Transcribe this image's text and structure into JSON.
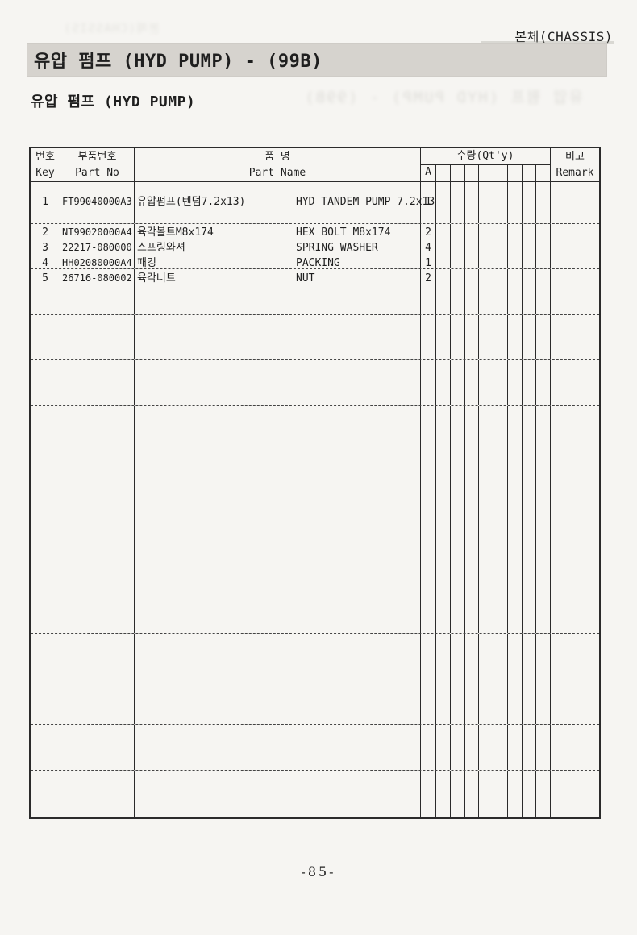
{
  "page": {
    "corner_label": "본체(CHASSIS)",
    "title_bar": "유압 펌프 (HYD PUMP) - (99B)",
    "subtitle": "유압 펌프 (HYD PUMP)",
    "page_number": "-85-"
  },
  "bleedthrough": {
    "right_text": "유압 펌프 (HYD PUMP) - (99B)",
    "top_text": "본체(CHASSIS)"
  },
  "table": {
    "header": {
      "key_ko": "번호",
      "key_en": "Key",
      "part_no_ko": "부품번호",
      "part_no_en": "Part No",
      "name_ko": "품 명",
      "name_en": "Part Name",
      "qty_label": "수량(Qt'y)",
      "qty_col_a": "A",
      "qty_empty_subcols": 8,
      "remark_ko": "비고",
      "remark_en": "Remark"
    },
    "rows": [
      {
        "key": "1",
        "part_no": "FT99040000A3",
        "name_ko": "유압펌프(텐덤7.2x13)",
        "name_en": "HYD TANDEM PUMP 7.2x13",
        "qty_a": "1"
      },
      {
        "key": "2",
        "part_no": "NT99020000A4",
        "name_ko": "육각볼트M8x174",
        "name_en": "HEX BOLT M8x174",
        "qty_a": "2"
      },
      {
        "key": "3",
        "part_no": "22217-080000",
        "name_ko": "스프링와셔",
        "name_en": "SPRING WASHER",
        "qty_a": "4"
      },
      {
        "key": "4",
        "part_no": "HH02080000A4",
        "name_ko": "패킹",
        "name_en": "PACKING",
        "qty_a": "1"
      },
      {
        "key": "5",
        "part_no": "26716-080002",
        "name_ko": "육각너트",
        "name_en": "NUT",
        "qty_a": "2"
      }
    ]
  }
}
